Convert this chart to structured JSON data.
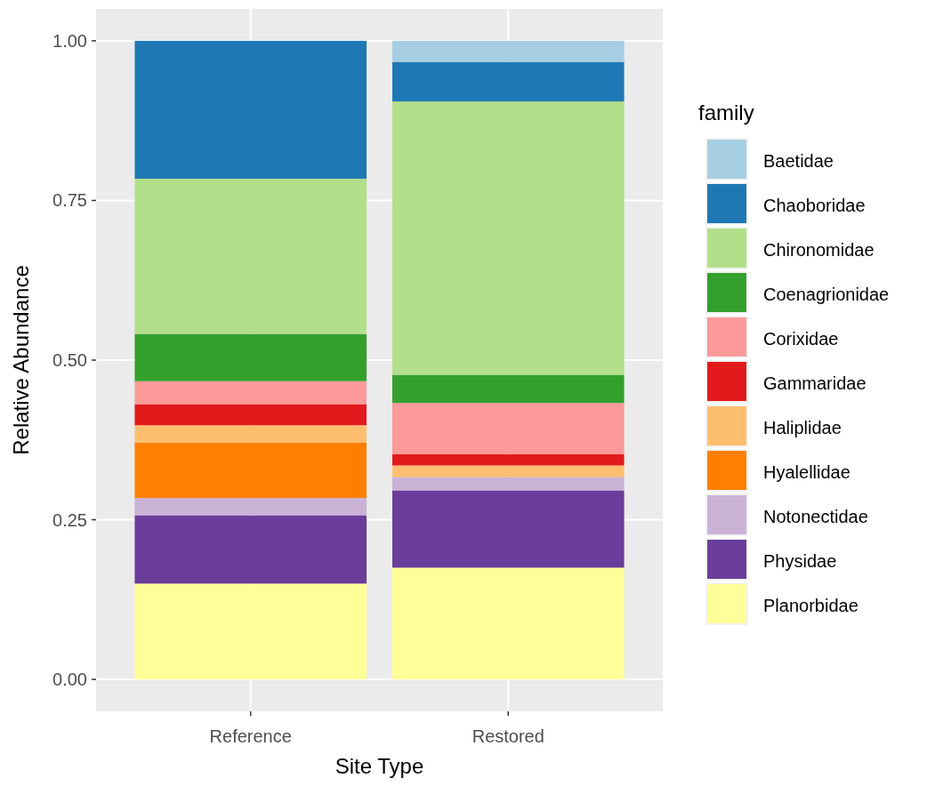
{
  "chart_data": {
    "type": "bar",
    "stacked": true,
    "xlabel": "Site Type",
    "ylabel": "Relative Abundance",
    "legend_title": "family",
    "legend": "right",
    "grid": true,
    "categories": [
      "Reference",
      "Restored"
    ],
    "ylim": [
      -0.05,
      1.05
    ],
    "yticks": [
      {
        "value": 0,
        "label": "0.00"
      },
      {
        "value": 0.25,
        "label": "0.25"
      },
      {
        "value": 0.5,
        "label": "0.50"
      },
      {
        "value": 0.75,
        "label": "0.75"
      },
      {
        "value": 1,
        "label": "1.00"
      }
    ],
    "series": [
      {
        "name": "Planorbidae",
        "color": "#ffff99",
        "values": [
          0.15,
          0.175
        ]
      },
      {
        "name": "Physidae",
        "color": "#6a3d9a",
        "values": [
          0.107,
          0.121
        ]
      },
      {
        "name": "Notonectidae",
        "color": "#cab2d6",
        "values": [
          0.027,
          0.021
        ]
      },
      {
        "name": "Hyalellidae",
        "color": "#ff7f00",
        "values": [
          0.087,
          0
        ]
      },
      {
        "name": "Haliplidae",
        "color": "#fdbf6f",
        "values": [
          0.027,
          0.018
        ]
      },
      {
        "name": "Gammaridae",
        "color": "#e31a1c",
        "values": [
          0.033,
          0.018
        ]
      },
      {
        "name": "Corixidae",
        "color": "#fb9a99",
        "values": [
          0.036,
          0.08
        ]
      },
      {
        "name": "Coenagrionidae",
        "color": "#33a02c",
        "values": [
          0.074,
          0.044
        ]
      },
      {
        "name": "Chironomidae",
        "color": "#b2df8a",
        "values": [
          0.243,
          0.428
        ]
      },
      {
        "name": "Chaoboridae",
        "color": "#1f78b4",
        "values": [
          0.216,
          0.062
        ]
      },
      {
        "name": "Baetidae",
        "color": "#a6cee3",
        "values": [
          0,
          0.033
        ]
      }
    ]
  }
}
